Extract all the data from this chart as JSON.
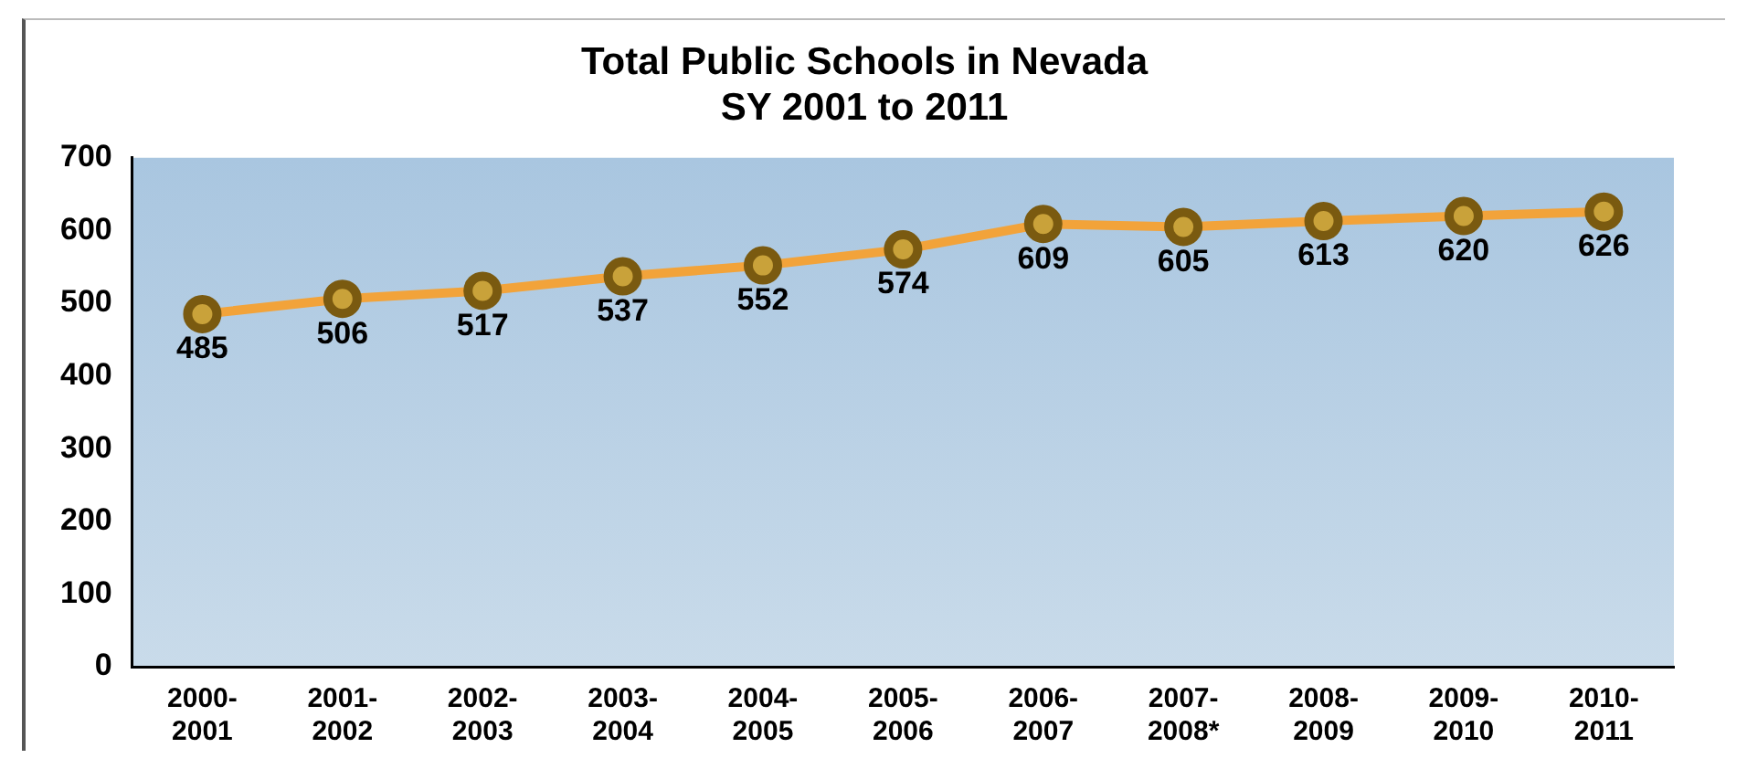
{
  "chart_data": {
    "type": "line",
    "title": "Total Public Schools in Nevada\nSY 2001 to 2011",
    "categories": [
      "2000-2001",
      "2001-2002",
      "2002-2003",
      "2003-2004",
      "2004-2005",
      "2005-2006",
      "2006-2007",
      "2007-2008*",
      "2008-2009",
      "2009-2010",
      "2010-2011"
    ],
    "series": [
      {
        "color": "#f2a33a",
        "values": [
          485,
          506,
          517,
          537,
          552,
          574,
          609,
          605,
          613,
          620,
          626
        ]
      }
    ],
    "ylim": [
      0,
      700
    ],
    "yticks": [
      0,
      100,
      200,
      300,
      400,
      500,
      600,
      700
    ],
    "grid": false,
    "legend": false,
    "marker": "circle",
    "data_labels": true
  }
}
